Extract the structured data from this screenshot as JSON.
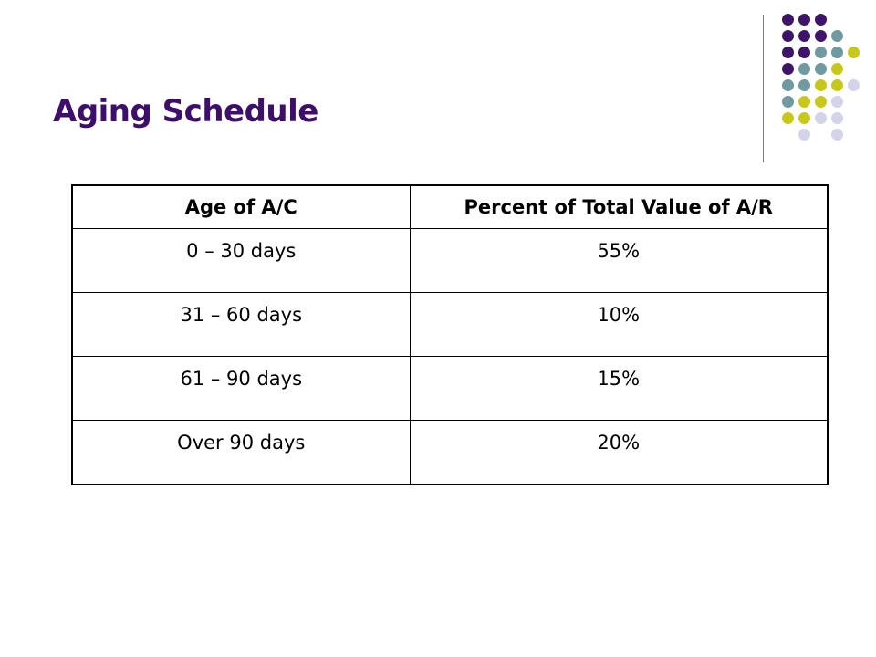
{
  "slide": {
    "title": "Aging Schedule",
    "title_color": "#3d0f6b"
  },
  "decoration": {
    "line_color": "#7f7f7f",
    "dot_colors": {
      "purple": "#3d1469",
      "teal": "#6f9aa0",
      "olive": "#c8c81a",
      "lavender": "#d3d3ea"
    }
  },
  "table": {
    "headers": [
      "Age of A/C",
      "Percent of Total Value of A/R"
    ],
    "rows": [
      [
        "0 – 30 days",
        "55%"
      ],
      [
        "31 – 60 days",
        "10%"
      ],
      [
        "61 – 90 days",
        "15%"
      ],
      [
        "Over 90 days",
        "20%"
      ]
    ]
  }
}
